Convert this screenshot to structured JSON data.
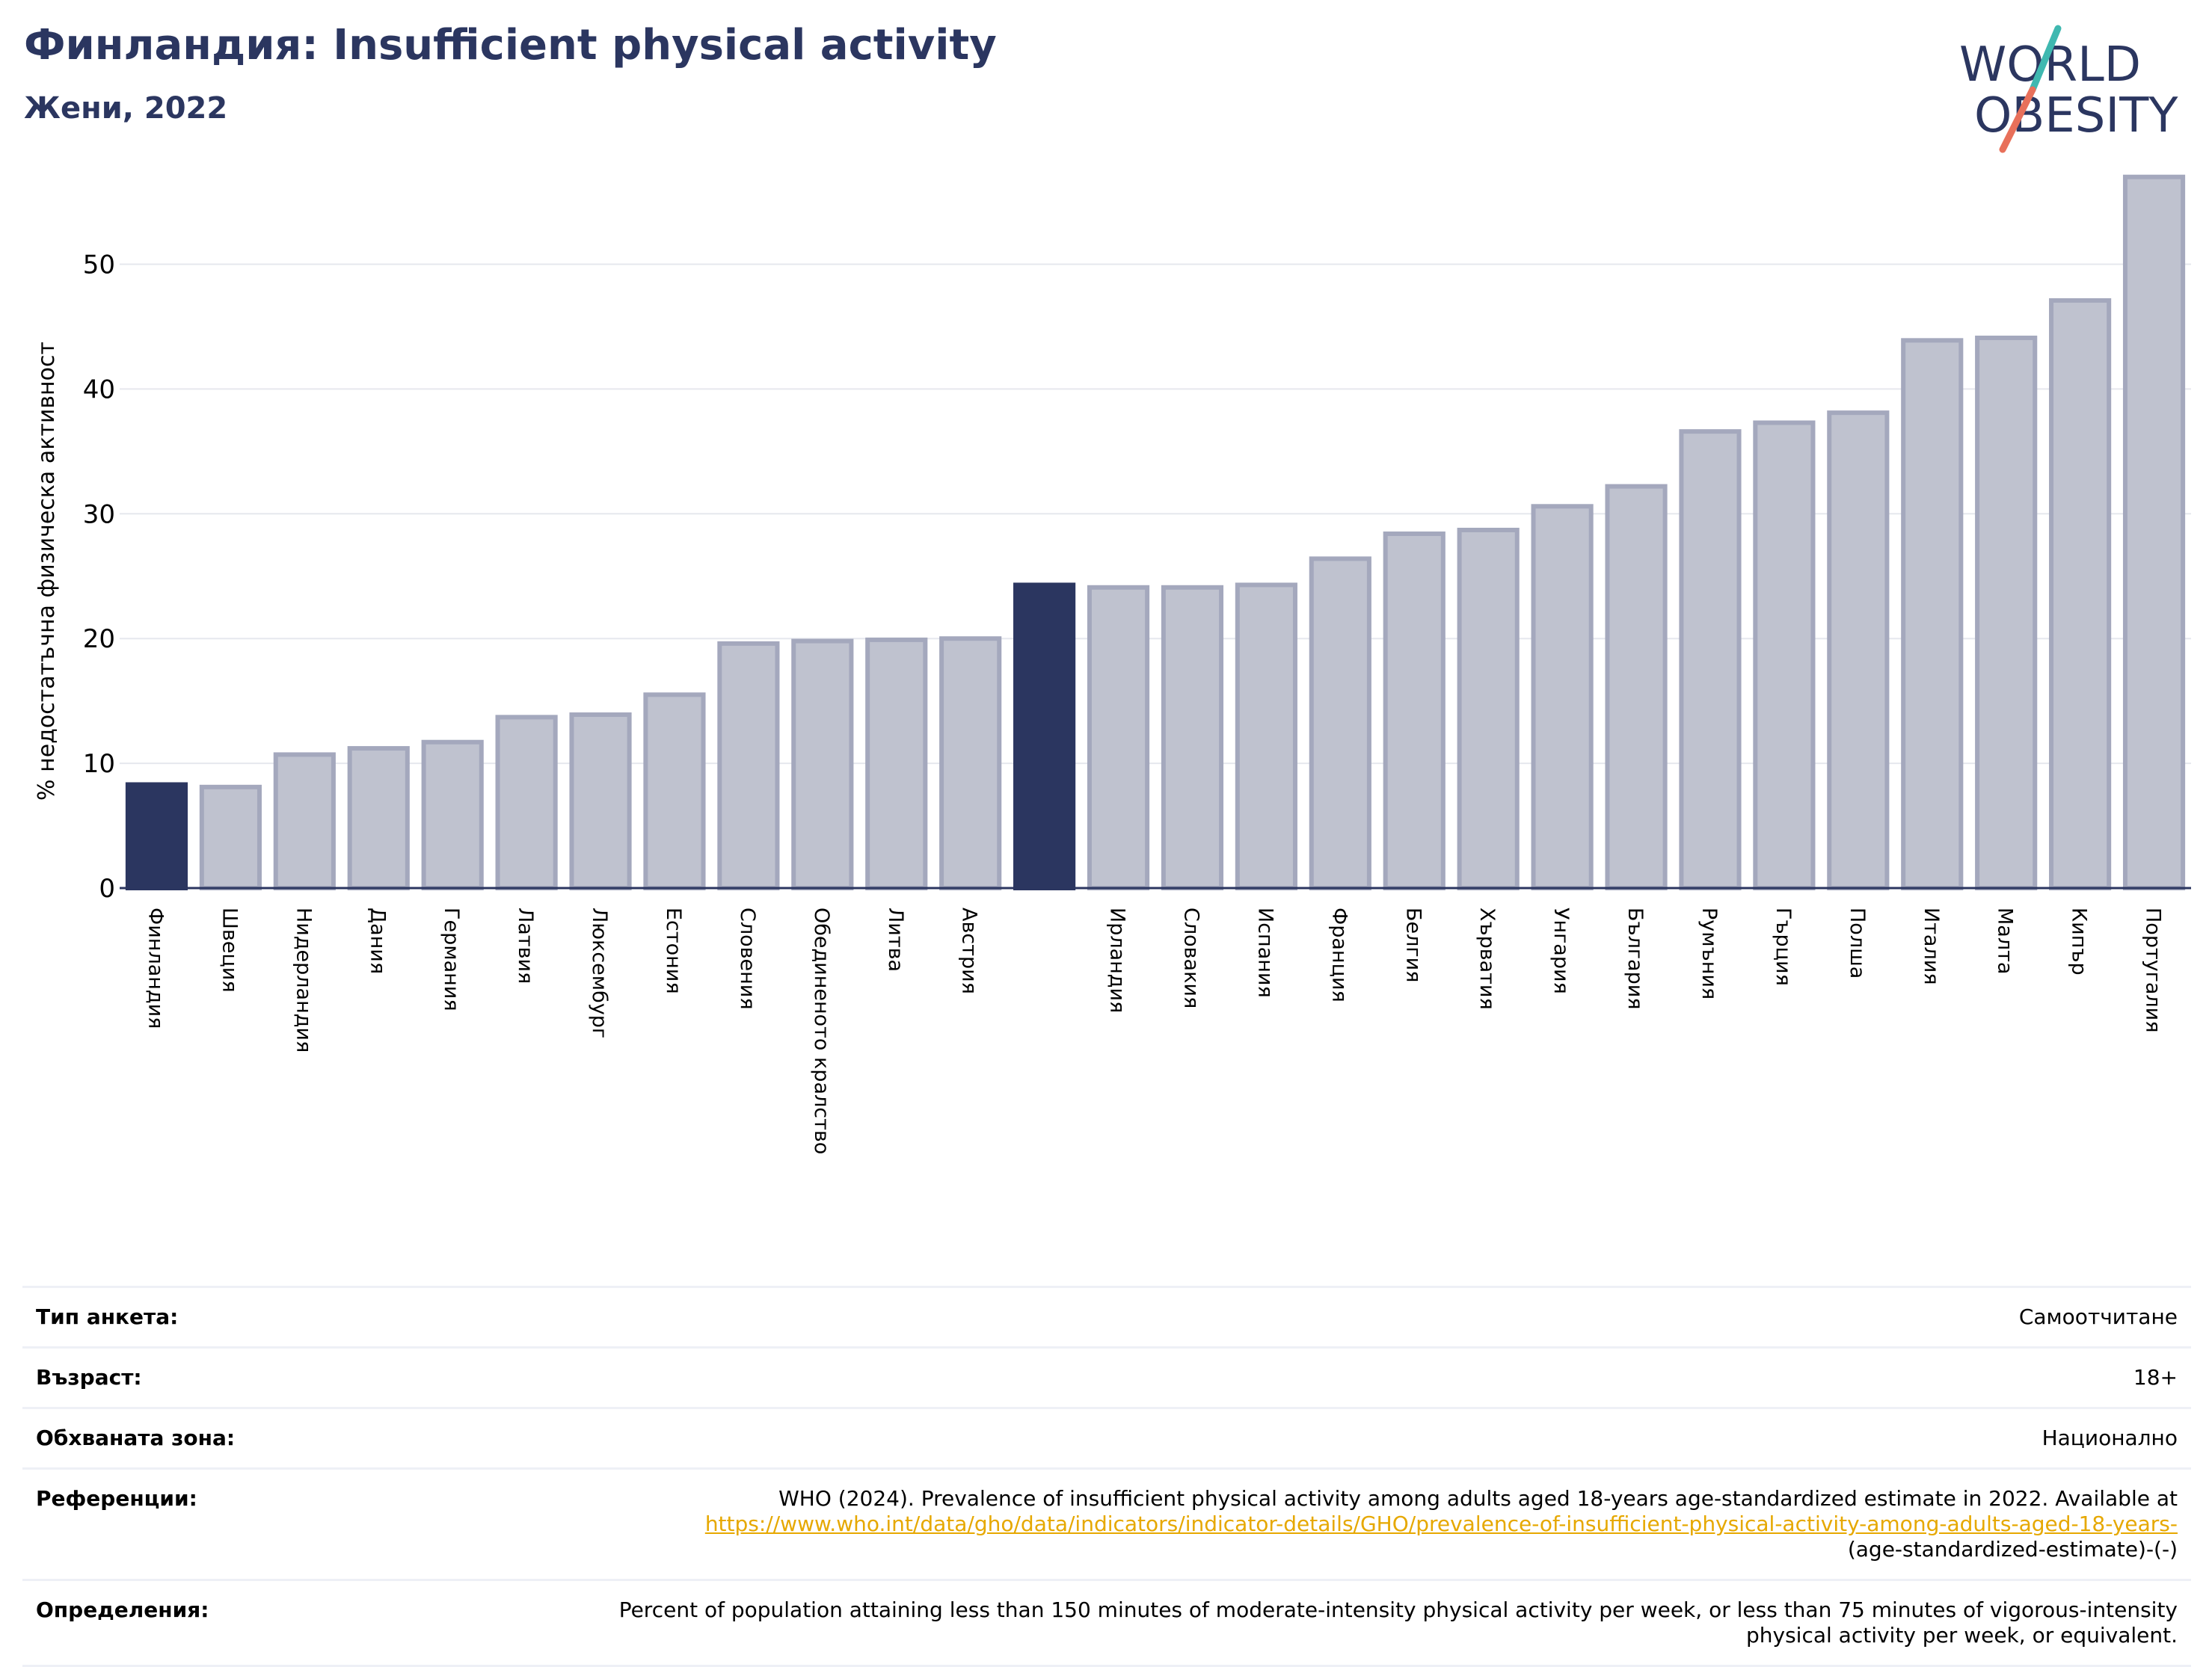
{
  "header": {
    "title": "Финландия: Insufficient physical activity",
    "subtitle": "Жени, 2022"
  },
  "logo": {
    "line1": "WORLD",
    "line2": "OBESITY",
    "text_color": "#2b3660",
    "slash_colors": [
      "#3fb8b0",
      "#e8705a"
    ]
  },
  "chart_data": {
    "type": "bar",
    "ylabel": "% недостатъчна физическа активност",
    "xlabel": "",
    "ylim": [
      0,
      58
    ],
    "yticks": [
      0,
      10,
      20,
      30,
      40,
      50
    ],
    "grid": true,
    "categories": [
      "Финландия",
      "Швеция",
      "Нидерландия",
      "Дания",
      "Германия",
      "Латвия",
      "Люксембург",
      "Естония",
      "Словения",
      "Обединеното кралство",
      "Литва",
      "Австрия",
      "",
      "Ирландия",
      "Словакия",
      "Испания",
      "Франция",
      "Белгия",
      "Хърватия",
      "Унгария",
      "България",
      "Румъния",
      "Гърция",
      "Полша",
      "Италия",
      "Малта",
      "Кипър",
      "Португалия"
    ],
    "values": [
      8.3,
      8.1,
      10.7,
      11.2,
      11.7,
      13.7,
      13.9,
      15.5,
      19.6,
      19.8,
      19.9,
      20.0,
      24.3,
      24.1,
      24.1,
      24.3,
      26.4,
      28.4,
      28.7,
      30.6,
      32.2,
      36.6,
      37.3,
      38.1,
      43.9,
      44.1,
      47.1,
      57.0
    ],
    "highlight_indices": [
      0,
      12
    ],
    "colors": {
      "highlight": "#2b3660",
      "bar_fill": "#bfc2cf",
      "bar_edge": "#a4a8bd",
      "grid": "#e6e8ee",
      "axis": "#2b3660"
    }
  },
  "info_table": {
    "rows": [
      {
        "label": "Тип анкета:",
        "value": "Самоотчитане"
      },
      {
        "label": "Възраст:",
        "value": "18+"
      },
      {
        "label": "Обхваната зона:",
        "value": "Национално"
      },
      {
        "label": "Референции:",
        "value": "WHO (2024). Prevalence of insufficient physical activity among adults aged 18-years age-standardized estimate in 2022. Available at",
        "link": "https://www.who.int/data/gho/data/indicators/indicator-details/GHO/prevalence-of-insufficient-physical-activity-among-adults-aged-18-years-",
        "value_after": "(age-standardized-estimate)-(-)"
      },
      {
        "label": "Определения:",
        "value": "Percent of population attaining less than 150 minutes of moderate-intensity physical activity per week, or less than 75 minutes of vigorous-intensity physical activity per week, or equivalent."
      }
    ]
  }
}
